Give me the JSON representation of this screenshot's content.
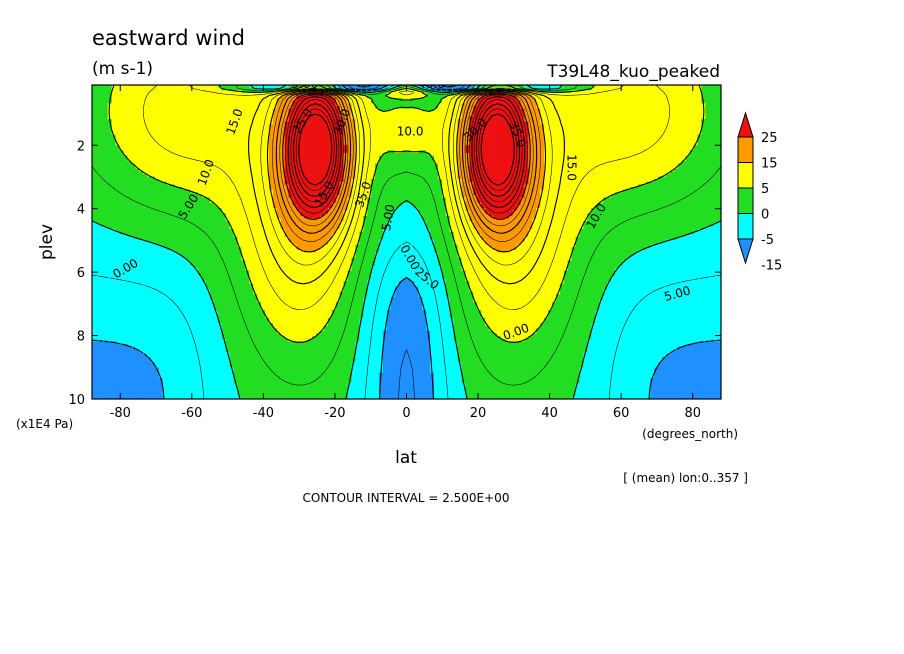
{
  "chart_data": {
    "type": "heatmap",
    "title": "eastward wind",
    "units": "(m s-1)",
    "run_label": "T39L48_kuo_peaked",
    "xlabel": "lat",
    "xunits": "(degrees_north)",
    "ylabel": "plev",
    "yunits": "(x1E4 Pa)",
    "xlim": [
      -87.9,
      87.9
    ],
    "ylim": [
      0.1,
      10
    ],
    "y_inverted": true,
    "x_ticks": [
      -80,
      -60,
      -40,
      -20,
      0,
      20,
      40,
      60,
      80
    ],
    "y_ticks": [
      2,
      4,
      6,
      8,
      10
    ],
    "colorbar": {
      "labels": [
        "25",
        "15",
        "5",
        "0",
        "-5",
        "-15"
      ],
      "levels": [
        -15,
        -5,
        0,
        5,
        15,
        25
      ],
      "colors": [
        "#1e90ff",
        "#00ffff",
        "#22dd22",
        "#ffff00",
        "#ff9900",
        "#ee1111"
      ]
    },
    "contour_interval_text": "CONTOUR INTERVAL = 2.500E+00",
    "mean_text": "[ (mean) lon:0..357 ]",
    "contour_labels": [
      "15.0",
      "10.0",
      "5.00",
      "0.00",
      "25.0",
      "30.0",
      "35.0",
      "15.0",
      "10.0",
      "5.00",
      "0.00",
      "25.0",
      "30.0",
      "35.0",
      "15.0",
      "10.0",
      "5.00",
      "0.00",
      "-5.00",
      "40.0"
    ],
    "jets": [
      {
        "lat": -25,
        "plev": 2.0,
        "max_speed": 40
      },
      {
        "lat": 25,
        "plev": 2.0,
        "max_speed": 40
      }
    ]
  }
}
